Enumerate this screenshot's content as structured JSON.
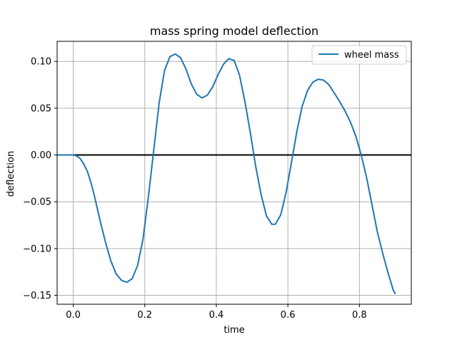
{
  "chart_data": {
    "type": "line",
    "title": "mass spring model deflection",
    "xlabel": "time",
    "ylabel": "deflection",
    "xlim": [
      -0.045,
      0.945
    ],
    "ylim": [
      -0.1595,
      0.1215
    ],
    "xticks": [
      0.0,
      0.2,
      0.4,
      0.6,
      0.8
    ],
    "xtick_labels": [
      "0.0",
      "0.2",
      "0.4",
      "0.6",
      "0.8"
    ],
    "yticks": [
      -0.15,
      -0.1,
      -0.05,
      0.0,
      0.05,
      0.1
    ],
    "ytick_labels": [
      "−0.15",
      "−0.10",
      "−0.05",
      "0.00",
      "0.05",
      "0.10"
    ],
    "grid": true,
    "legend_position": "upper right",
    "reference_line": {
      "y": 0.0,
      "color": "#000000"
    },
    "series": [
      {
        "name": "wheel mass",
        "color": "#1f77b4",
        "points": [
          [
            -0.045,
            0.0
          ],
          [
            0.0,
            0.0
          ],
          [
            0.01,
            -0.001
          ],
          [
            0.02,
            -0.004
          ],
          [
            0.03,
            -0.01
          ],
          [
            0.04,
            -0.018
          ],
          [
            0.05,
            -0.03
          ],
          [
            0.06,
            -0.045
          ],
          [
            0.075,
            -0.07
          ],
          [
            0.09,
            -0.093
          ],
          [
            0.105,
            -0.113
          ],
          [
            0.12,
            -0.127
          ],
          [
            0.135,
            -0.134
          ],
          [
            0.15,
            -0.136
          ],
          [
            0.165,
            -0.132
          ],
          [
            0.18,
            -0.118
          ],
          [
            0.195,
            -0.09
          ],
          [
            0.21,
            -0.045
          ],
          [
            0.225,
            0.005
          ],
          [
            0.24,
            0.055
          ],
          [
            0.255,
            0.09
          ],
          [
            0.27,
            0.105
          ],
          [
            0.285,
            0.108
          ],
          [
            0.3,
            0.104
          ],
          [
            0.315,
            0.092
          ],
          [
            0.33,
            0.076
          ],
          [
            0.345,
            0.065
          ],
          [
            0.36,
            0.061
          ],
          [
            0.375,
            0.064
          ],
          [
            0.39,
            0.073
          ],
          [
            0.405,
            0.086
          ],
          [
            0.42,
            0.097
          ],
          [
            0.435,
            0.103
          ],
          [
            0.45,
            0.101
          ],
          [
            0.465,
            0.085
          ],
          [
            0.48,
            0.057
          ],
          [
            0.495,
            0.024
          ],
          [
            0.51,
            -0.012
          ],
          [
            0.525,
            -0.042
          ],
          [
            0.54,
            -0.065
          ],
          [
            0.555,
            -0.074
          ],
          [
            0.565,
            -0.074
          ],
          [
            0.58,
            -0.064
          ],
          [
            0.595,
            -0.04
          ],
          [
            0.61,
            -0.008
          ],
          [
            0.625,
            0.025
          ],
          [
            0.64,
            0.052
          ],
          [
            0.655,
            0.069
          ],
          [
            0.67,
            0.078
          ],
          [
            0.685,
            0.081
          ],
          [
            0.7,
            0.08
          ],
          [
            0.715,
            0.075
          ],
          [
            0.73,
            0.066
          ],
          [
            0.745,
            0.057
          ],
          [
            0.76,
            0.047
          ],
          [
            0.775,
            0.035
          ],
          [
            0.79,
            0.02
          ],
          [
            0.805,
            0.0
          ],
          [
            0.82,
            -0.024
          ],
          [
            0.835,
            -0.053
          ],
          [
            0.85,
            -0.082
          ],
          [
            0.865,
            -0.105
          ],
          [
            0.88,
            -0.126
          ],
          [
            0.895,
            -0.145
          ],
          [
            0.9,
            -0.148
          ]
        ]
      }
    ]
  }
}
